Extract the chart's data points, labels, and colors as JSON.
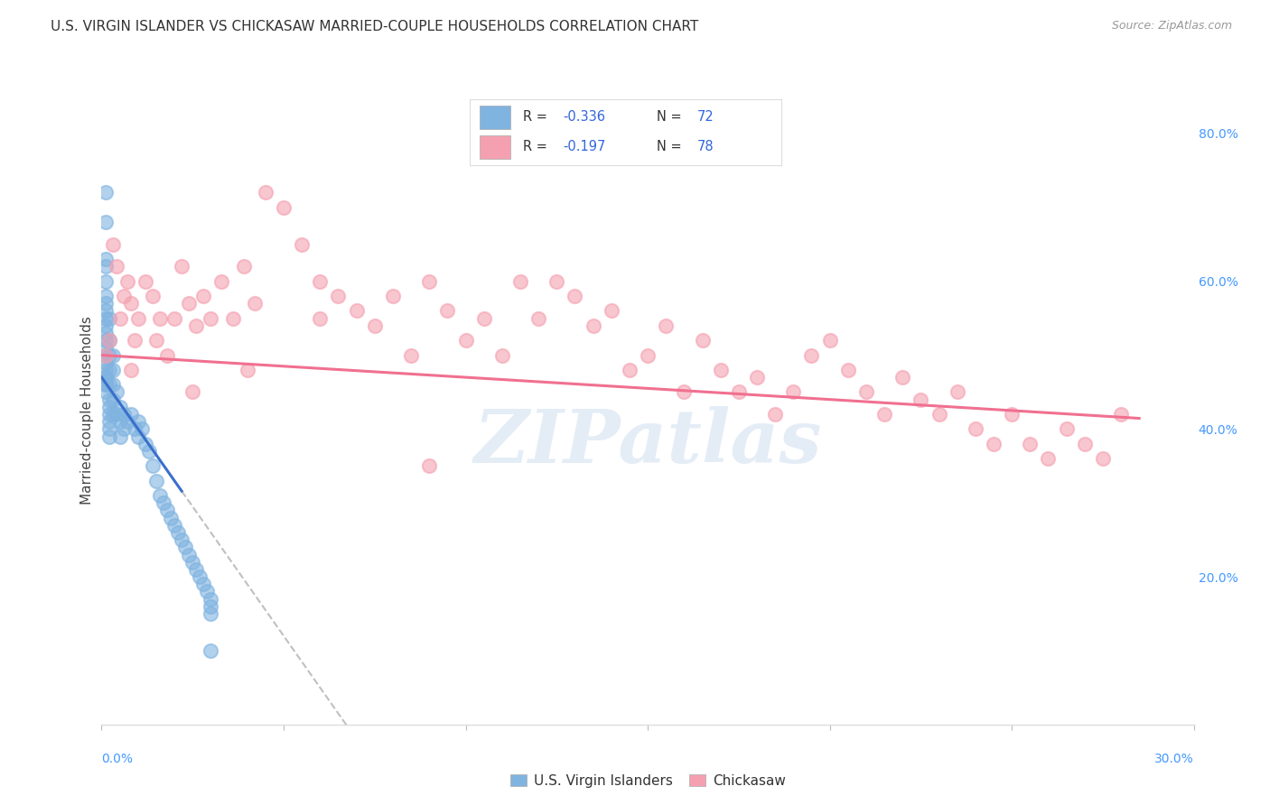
{
  "title": "U.S. VIRGIN ISLANDER VS CHICKASAW MARRIED-COUPLE HOUSEHOLDS CORRELATION CHART",
  "source": "Source: ZipAtlas.com",
  "ylabel": "Married-couple Households",
  "xmin": 0.0,
  "xmax": 0.3,
  "ymin": 0.0,
  "ymax": 0.85,
  "color_vi": "#7fb3e0",
  "color_ck": "#f4a0b0",
  "trendline_vi_color": "#3b6fcc",
  "trendline_ck_color": "#f07090",
  "trendline_dashed_color": "#c0c0c0",
  "background_color": "#ffffff",
  "grid_color": "#cccccc",
  "watermark": "ZIPatlas",
  "legend_label_vi": "U.S. Virgin Islanders",
  "legend_label_ck": "Chickasaw",
  "legend_r1": "-0.336",
  "legend_n1": "72",
  "legend_r2": "-0.197",
  "legend_n2": "78",
  "vi_x": [
    0.001,
    0.001,
    0.001,
    0.001,
    0.001,
    0.001,
    0.001,
    0.001,
    0.001,
    0.001,
    0.001,
    0.001,
    0.001,
    0.001,
    0.001,
    0.001,
    0.001,
    0.001,
    0.001,
    0.001,
    0.001,
    0.002,
    0.002,
    0.002,
    0.002,
    0.002,
    0.002,
    0.002,
    0.002,
    0.002,
    0.002,
    0.002,
    0.003,
    0.003,
    0.003,
    0.003,
    0.003,
    0.004,
    0.004,
    0.005,
    0.005,
    0.005,
    0.006,
    0.006,
    0.007,
    0.008,
    0.009,
    0.01,
    0.01,
    0.011,
    0.012,
    0.013,
    0.014,
    0.015,
    0.016,
    0.017,
    0.018,
    0.019,
    0.02,
    0.021,
    0.022,
    0.023,
    0.024,
    0.025,
    0.026,
    0.027,
    0.028,
    0.029,
    0.03,
    0.03,
    0.03,
    0.03
  ],
  "vi_y": [
    0.72,
    0.68,
    0.63,
    0.62,
    0.6,
    0.58,
    0.57,
    0.56,
    0.55,
    0.54,
    0.53,
    0.52,
    0.51,
    0.5,
    0.49,
    0.48,
    0.47,
    0.47,
    0.46,
    0.46,
    0.45,
    0.55,
    0.52,
    0.5,
    0.48,
    0.46,
    0.44,
    0.43,
    0.42,
    0.41,
    0.4,
    0.39,
    0.5,
    0.48,
    0.46,
    0.44,
    0.42,
    0.45,
    0.42,
    0.43,
    0.41,
    0.39,
    0.42,
    0.4,
    0.41,
    0.42,
    0.4,
    0.41,
    0.39,
    0.4,
    0.38,
    0.37,
    0.35,
    0.33,
    0.31,
    0.3,
    0.29,
    0.28,
    0.27,
    0.26,
    0.25,
    0.24,
    0.23,
    0.22,
    0.21,
    0.2,
    0.19,
    0.18,
    0.17,
    0.16,
    0.15,
    0.1
  ],
  "ck_x": [
    0.001,
    0.002,
    0.003,
    0.004,
    0.005,
    0.006,
    0.007,
    0.008,
    0.009,
    0.01,
    0.012,
    0.014,
    0.016,
    0.018,
    0.02,
    0.022,
    0.024,
    0.026,
    0.028,
    0.03,
    0.033,
    0.036,
    0.039,
    0.042,
    0.045,
    0.05,
    0.055,
    0.06,
    0.065,
    0.07,
    0.075,
    0.08,
    0.085,
    0.09,
    0.095,
    0.1,
    0.105,
    0.11,
    0.115,
    0.12,
    0.125,
    0.13,
    0.135,
    0.14,
    0.145,
    0.15,
    0.155,
    0.16,
    0.165,
    0.17,
    0.175,
    0.18,
    0.185,
    0.19,
    0.195,
    0.2,
    0.205,
    0.21,
    0.215,
    0.22,
    0.225,
    0.23,
    0.235,
    0.24,
    0.245,
    0.25,
    0.255,
    0.26,
    0.265,
    0.27,
    0.275,
    0.28,
    0.008,
    0.015,
    0.025,
    0.04,
    0.06,
    0.09
  ],
  "ck_y": [
    0.5,
    0.52,
    0.65,
    0.62,
    0.55,
    0.58,
    0.6,
    0.57,
    0.52,
    0.55,
    0.6,
    0.58,
    0.55,
    0.5,
    0.55,
    0.62,
    0.57,
    0.54,
    0.58,
    0.55,
    0.6,
    0.55,
    0.62,
    0.57,
    0.72,
    0.7,
    0.65,
    0.6,
    0.58,
    0.56,
    0.54,
    0.58,
    0.5,
    0.6,
    0.56,
    0.52,
    0.55,
    0.5,
    0.6,
    0.55,
    0.6,
    0.58,
    0.54,
    0.56,
    0.48,
    0.5,
    0.54,
    0.45,
    0.52,
    0.48,
    0.45,
    0.47,
    0.42,
    0.45,
    0.5,
    0.52,
    0.48,
    0.45,
    0.42,
    0.47,
    0.44,
    0.42,
    0.45,
    0.4,
    0.38,
    0.42,
    0.38,
    0.36,
    0.4,
    0.38,
    0.36,
    0.42,
    0.48,
    0.52,
    0.45,
    0.48,
    0.55,
    0.35
  ]
}
